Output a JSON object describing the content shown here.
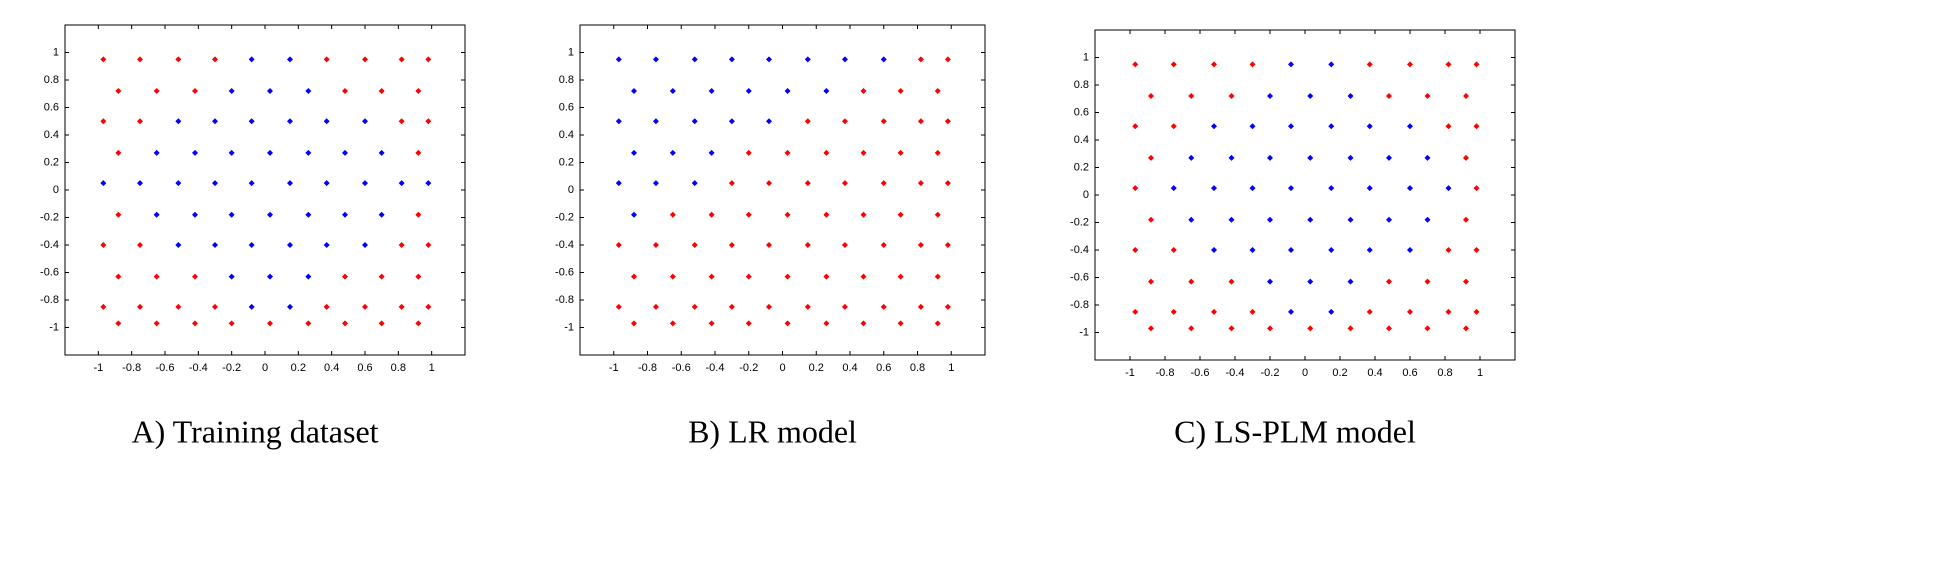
{
  "chart_data": [
    {
      "type": "scatter",
      "title": "A) Training dataset",
      "xlim": [
        -1.2,
        1.2
      ],
      "ylim": [
        -1.2,
        1.2
      ],
      "xticks": [
        -1,
        -0.8,
        -0.6,
        -0.4,
        -0.2,
        0,
        0.2,
        0.4,
        0.6,
        0.8,
        1
      ],
      "yticks": [
        -1,
        -0.8,
        -0.6,
        -0.4,
        -0.2,
        0,
        0.2,
        0.4,
        0.6,
        0.8,
        1
      ],
      "series": [
        {
          "color": "#0000ff",
          "x": [
            -0.08,
            0.15,
            -0.2,
            0.03,
            0.26,
            -0.52,
            -0.3,
            -0.08,
            0.15,
            0.37,
            0.6,
            -0.65,
            -0.42,
            -0.2,
            0.03,
            0.26,
            0.48,
            0.7,
            -0.97,
            -0.75,
            -0.52,
            -0.3,
            -0.08,
            0.15,
            0.37,
            0.6,
            0.82,
            0.98,
            -0.65,
            -0.42,
            -0.2,
            0.03,
            0.26,
            0.48,
            0.7,
            -0.52,
            -0.3,
            -0.08,
            0.15,
            0.37,
            0.6,
            -0.2,
            0.03,
            0.26,
            -0.08,
            0.15
          ],
          "values": [
            0.95,
            0.95,
            0.72,
            0.72,
            0.72,
            0.5,
            0.5,
            0.5,
            0.5,
            0.5,
            0.5,
            0.27,
            0.27,
            0.27,
            0.27,
            0.27,
            0.27,
            0.27,
            0.05,
            0.05,
            0.05,
            0.05,
            0.05,
            0.05,
            0.05,
            0.05,
            0.05,
            0.05,
            -0.18,
            -0.18,
            -0.18,
            -0.18,
            -0.18,
            -0.18,
            -0.18,
            -0.4,
            -0.4,
            -0.4,
            -0.4,
            -0.4,
            -0.4,
            -0.63,
            -0.63,
            -0.63,
            -0.85,
            -0.85
          ]
        },
        {
          "color": "#ff0000",
          "x": [
            -0.97,
            -0.75,
            -0.52,
            -0.3,
            0.37,
            0.6,
            0.82,
            0.98,
            -0.88,
            -0.65,
            -0.42,
            0.48,
            0.7,
            0.92,
            -0.97,
            -0.75,
            0.82,
            0.98,
            -0.88,
            0.92,
            -0.88,
            0.92,
            -0.97,
            -0.75,
            0.82,
            0.98,
            -0.88,
            -0.65,
            -0.42,
            0.48,
            0.7,
            0.92,
            -0.97,
            -0.75,
            -0.52,
            -0.3,
            0.37,
            0.6,
            0.82,
            0.98,
            -0.88,
            -0.65,
            -0.42,
            -0.2,
            0.03,
            0.26,
            0.48,
            0.7,
            0.92
          ],
          "values": [
            0.95,
            0.95,
            0.95,
            0.95,
            0.95,
            0.95,
            0.95,
            0.95,
            0.72,
            0.72,
            0.72,
            0.72,
            0.72,
            0.72,
            0.5,
            0.5,
            0.5,
            0.5,
            0.27,
            0.27,
            -0.18,
            -0.18,
            -0.4,
            -0.4,
            -0.4,
            -0.4,
            -0.63,
            -0.63,
            -0.63,
            -0.63,
            -0.63,
            -0.63,
            -0.85,
            -0.85,
            -0.85,
            -0.85,
            -0.85,
            -0.85,
            -0.85,
            -0.85,
            -0.97,
            -0.97,
            -0.97,
            -0.97,
            -0.97,
            -0.97,
            -0.97,
            -0.97,
            -0.97
          ]
        }
      ]
    },
    {
      "type": "scatter",
      "title": "B) LR model",
      "xlim": [
        -1.2,
        1.2
      ],
      "ylim": [
        -1.2,
        1.2
      ],
      "xticks": [
        -1,
        -0.8,
        -0.6,
        -0.4,
        -0.2,
        0,
        0.2,
        0.4,
        0.6,
        0.8,
        1
      ],
      "yticks": [
        -1,
        -0.8,
        -0.6,
        -0.4,
        -0.2,
        0,
        0.2,
        0.4,
        0.6,
        0.8,
        1
      ],
      "series": [
        {
          "color": "#0000ff",
          "x": [
            -0.97,
            -0.75,
            -0.52,
            -0.3,
            -0.08,
            0.15,
            0.37,
            0.6,
            -0.88,
            -0.65,
            -0.42,
            -0.2,
            0.03,
            0.26,
            -0.97,
            -0.75,
            -0.52,
            -0.3,
            -0.08,
            -0.88,
            -0.65,
            -0.42,
            -0.97,
            -0.75,
            -0.52,
            -0.88
          ],
          "values": [
            0.95,
            0.95,
            0.95,
            0.95,
            0.95,
            0.95,
            0.95,
            0.95,
            0.72,
            0.72,
            0.72,
            0.72,
            0.72,
            0.72,
            0.5,
            0.5,
            0.5,
            0.5,
            0.5,
            0.27,
            0.27,
            0.27,
            0.05,
            0.05,
            0.05,
            -0.18
          ]
        },
        {
          "color": "#ff0000",
          "x": [
            0.82,
            0.98,
            0.48,
            0.7,
            0.92,
            0.15,
            0.37,
            0.6,
            0.82,
            0.98,
            -0.2,
            0.03,
            0.26,
            0.48,
            0.7,
            0.92,
            -0.3,
            -0.08,
            0.15,
            0.37,
            0.6,
            0.82,
            0.98,
            -0.65,
            -0.42,
            -0.2,
            0.03,
            0.26,
            0.48,
            0.7,
            0.92,
            -0.97,
            -0.75,
            -0.52,
            -0.3,
            -0.08,
            0.15,
            0.37,
            0.6,
            0.82,
            0.98,
            -0.88,
            -0.65,
            -0.42,
            -0.2,
            0.03,
            0.26,
            0.48,
            0.7,
            0.92,
            -0.97,
            -0.75,
            -0.52,
            -0.3,
            -0.08,
            0.15,
            0.37,
            0.6,
            0.82,
            0.98,
            -0.88,
            -0.65,
            -0.42,
            -0.2,
            0.03,
            0.26,
            0.48,
            0.7,
            0.92
          ],
          "values": [
            0.95,
            0.95,
            0.72,
            0.72,
            0.72,
            0.5,
            0.5,
            0.5,
            0.5,
            0.5,
            0.27,
            0.27,
            0.27,
            0.27,
            0.27,
            0.27,
            0.05,
            0.05,
            0.05,
            0.05,
            0.05,
            0.05,
            0.05,
            -0.18,
            -0.18,
            -0.18,
            -0.18,
            -0.18,
            -0.18,
            -0.18,
            -0.18,
            -0.4,
            -0.4,
            -0.4,
            -0.4,
            -0.4,
            -0.4,
            -0.4,
            -0.4,
            -0.4,
            -0.4,
            -0.63,
            -0.63,
            -0.63,
            -0.63,
            -0.63,
            -0.63,
            -0.63,
            -0.63,
            -0.63,
            -0.85,
            -0.85,
            -0.85,
            -0.85,
            -0.85,
            -0.85,
            -0.85,
            -0.85,
            -0.85,
            -0.85,
            -0.97,
            -0.97,
            -0.97,
            -0.97,
            -0.97,
            -0.97,
            -0.97,
            -0.97,
            -0.97
          ]
        }
      ]
    },
    {
      "type": "scatter",
      "title": "C) LS-PLM model",
      "xlim": [
        -1.2,
        1.2
      ],
      "ylim": [
        -1.2,
        1.2
      ],
      "xticks": [
        -1,
        -0.8,
        -0.6,
        -0.4,
        -0.2,
        0,
        0.2,
        0.4,
        0.6,
        0.8,
        1
      ],
      "yticks": [
        -1,
        -0.8,
        -0.6,
        -0.4,
        -0.2,
        0,
        0.2,
        0.4,
        0.6,
        0.8,
        1
      ],
      "series": [
        {
          "color": "#0000ff",
          "x": [
            -0.08,
            0.15,
            -0.2,
            0.03,
            0.26,
            -0.52,
            -0.3,
            -0.08,
            0.15,
            0.37,
            0.6,
            -0.65,
            -0.42,
            -0.2,
            0.03,
            0.26,
            0.48,
            0.7,
            -0.75,
            -0.52,
            -0.3,
            -0.08,
            0.15,
            0.37,
            0.6,
            0.82,
            -0.65,
            -0.42,
            -0.2,
            0.03,
            0.26,
            0.48,
            0.7,
            -0.52,
            -0.3,
            -0.08,
            0.15,
            0.37,
            0.6,
            -0.2,
            0.03,
            0.26,
            -0.08,
            0.15
          ],
          "values": [
            0.95,
            0.95,
            0.72,
            0.72,
            0.72,
            0.5,
            0.5,
            0.5,
            0.5,
            0.5,
            0.5,
            0.27,
            0.27,
            0.27,
            0.27,
            0.27,
            0.27,
            0.27,
            0.05,
            0.05,
            0.05,
            0.05,
            0.05,
            0.05,
            0.05,
            0.05,
            -0.18,
            -0.18,
            -0.18,
            -0.18,
            -0.18,
            -0.18,
            -0.18,
            -0.4,
            -0.4,
            -0.4,
            -0.4,
            -0.4,
            -0.4,
            -0.63,
            -0.63,
            -0.63,
            -0.85,
            -0.85
          ]
        },
        {
          "color": "#ff0000",
          "x": [
            -0.97,
            -0.75,
            -0.52,
            -0.3,
            0.37,
            0.6,
            0.82,
            0.98,
            -0.88,
            -0.65,
            -0.42,
            0.48,
            0.7,
            0.92,
            -0.97,
            -0.75,
            0.82,
            0.98,
            -0.88,
            0.92,
            -0.97,
            0.98,
            -0.88,
            0.92,
            -0.97,
            -0.75,
            0.82,
            0.98,
            -0.88,
            -0.65,
            -0.42,
            0.48,
            0.7,
            0.92,
            -0.97,
            -0.75,
            -0.52,
            -0.3,
            0.37,
            0.6,
            0.82,
            0.98,
            -0.88,
            -0.65,
            -0.42,
            -0.2,
            0.03,
            0.26,
            0.48,
            0.7,
            0.92
          ],
          "values": [
            0.95,
            0.95,
            0.95,
            0.95,
            0.95,
            0.95,
            0.95,
            0.95,
            0.72,
            0.72,
            0.72,
            0.72,
            0.72,
            0.72,
            0.5,
            0.5,
            0.5,
            0.5,
            0.27,
            0.27,
            0.05,
            0.05,
            -0.18,
            -0.18,
            -0.4,
            -0.4,
            -0.4,
            -0.4,
            -0.63,
            -0.63,
            -0.63,
            -0.63,
            -0.63,
            -0.63,
            -0.85,
            -0.85,
            -0.85,
            -0.85,
            -0.85,
            -0.85,
            -0.85,
            -0.85,
            -0.97,
            -0.97,
            -0.97,
            -0.97,
            -0.97,
            -0.97,
            -0.97,
            -0.97,
            -0.97
          ]
        }
      ]
    }
  ]
}
